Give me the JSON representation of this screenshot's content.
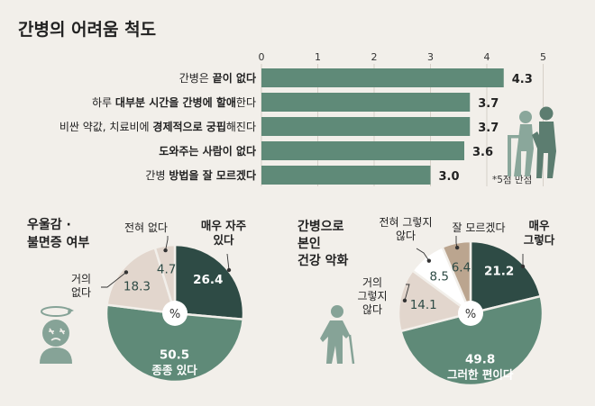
{
  "title": "간병의 어려움 척도",
  "colors": {
    "dark": "#2e4b45",
    "mid": "#5f8a78",
    "light": "#e2d6cd",
    "tan": "#bba58f",
    "white": "#ffffff",
    "bg": "#f2efea",
    "figure": "#7a9a8c",
    "figure_light": "#9db4aa"
  },
  "chart_data": [
    {
      "type": "bar",
      "orientation": "horizontal",
      "xlim": [
        0,
        5
      ],
      "ticks": [
        "0",
        "1",
        "2",
        "3",
        "4",
        "5"
      ],
      "rows": [
        {
          "value": 4.3,
          "label": "4.3",
          "parts": [
            {
              "t": "간병은 ",
              "b": false
            },
            {
              "t": "끝이 없다",
              "b": true
            }
          ]
        },
        {
          "value": 3.7,
          "label": "3.7",
          "parts": [
            {
              "t": "하루 ",
              "b": false
            },
            {
              "t": "대부분 시간을 간병에 할애",
              "b": true
            },
            {
              "t": "한다",
              "b": false
            }
          ]
        },
        {
          "value": 3.7,
          "label": "3.7",
          "parts": [
            {
              "t": "비싼 약값, 치료비에 ",
              "b": false
            },
            {
              "t": "경제적으로 궁핍",
              "b": true
            },
            {
              "t": "해진다",
              "b": false
            }
          ]
        },
        {
          "value": 3.6,
          "label": "3.6",
          "parts": [
            {
              "t": "도와주는 사람이 없다",
              "b": true
            }
          ]
        },
        {
          "value": 3.0,
          "label": "3.0",
          "parts": [
            {
              "t": "간병 ",
              "b": false
            },
            {
              "t": "방법을 잘 모르겠다",
              "b": true
            }
          ]
        }
      ],
      "note": "*5점 만점"
    },
    {
      "type": "pie",
      "title_lines": [
        "우울감 ·",
        "불면증 여부"
      ],
      "unit": "%",
      "slices": [
        {
          "name": "매우 자주 있다",
          "value": 26.4,
          "label_lines": [
            "매우 자주",
            "있다"
          ],
          "color": "dark",
          "text_color": "white"
        },
        {
          "name": "종종 있다",
          "value": 50.5,
          "label_lines": [
            "종종 있다"
          ],
          "color": "mid",
          "text_color": "white"
        },
        {
          "name": "거의 없다",
          "value": 18.3,
          "label_lines": [
            "거의",
            "없다"
          ],
          "color": "light",
          "text_color": "dark"
        },
        {
          "name": "전혀 없다",
          "value": 4.7,
          "label_lines": [
            "전혀 없다"
          ],
          "color": "light",
          "text_color": "dark"
        }
      ]
    },
    {
      "type": "pie",
      "title_lines": [
        "간병으로",
        "본인",
        "건강 악화"
      ],
      "unit": "%",
      "slices": [
        {
          "name": "매우 그렇다",
          "value": 21.2,
          "label_lines": [
            "매우",
            "그렇다"
          ],
          "color": "dark",
          "text_color": "white"
        },
        {
          "name": "그러한 편이다",
          "value": 49.8,
          "label_lines": [
            "그러한 편이다"
          ],
          "color": "mid",
          "text_color": "white"
        },
        {
          "name": "거의 그렇지 않다",
          "value": 14.1,
          "label_lines": [
            "거의",
            "그렇지",
            "않다"
          ],
          "color": "light",
          "text_color": "dark"
        },
        {
          "name": "전혀 그렇지 않다",
          "value": 8.5,
          "label_lines": [
            "전혀 그렇지",
            "않다"
          ],
          "color": "white",
          "text_color": "dark"
        },
        {
          "name": "잘 모르겠다",
          "value": 6.4,
          "label_lines": [
            "잘 모르겠다"
          ],
          "color": "tan",
          "text_color": "dark"
        }
      ]
    }
  ]
}
